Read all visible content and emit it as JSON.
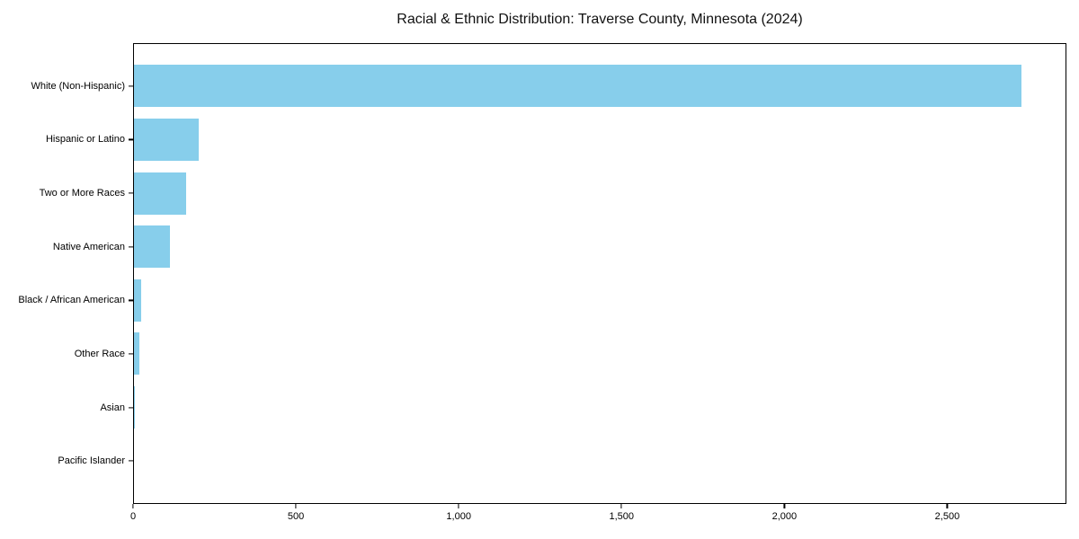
{
  "chart_data": {
    "type": "bar",
    "orientation": "horizontal",
    "title": "Racial & Ethnic Distribution: Traverse County, Minnesota (2024)",
    "categories": [
      "White (Non-Hispanic)",
      "Hispanic or Latino",
      "Two or More Races",
      "Native American",
      "Black / African American",
      "Other Race",
      "Asian",
      "Pacific Islander"
    ],
    "values": [
      2730,
      200,
      160,
      110,
      22,
      16,
      4,
      0
    ],
    "xlabel": "",
    "ylabel": "",
    "xlim": [
      0,
      2866
    ],
    "xticks": [
      0,
      500,
      1000,
      1500,
      2000,
      2500
    ],
    "xtick_labels": [
      "0",
      "500",
      "1,000",
      "1,500",
      "2,000",
      "2,500"
    ],
    "bar_color": "#87CEEB",
    "background_color": "#ffffff",
    "grid": false,
    "legend": null
  }
}
